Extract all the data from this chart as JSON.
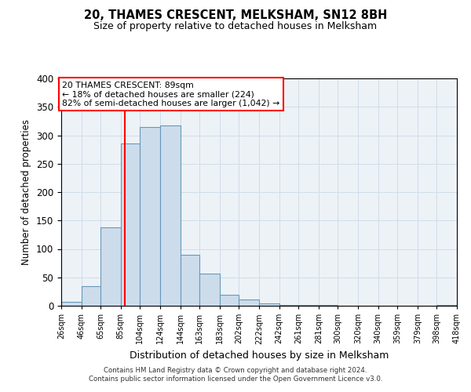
{
  "title": "20, THAMES CRESCENT, MELKSHAM, SN12 8BH",
  "subtitle": "Size of property relative to detached houses in Melksham",
  "xlabel": "Distribution of detached houses by size in Melksham",
  "ylabel": "Number of detached properties",
  "bin_edges": [
    26,
    46,
    65,
    85,
    104,
    124,
    144,
    163,
    183,
    202,
    222,
    242,
    261,
    281,
    300,
    320,
    340,
    359,
    379,
    398,
    418
  ],
  "bar_heights": [
    7,
    35,
    138,
    285,
    315,
    317,
    90,
    57,
    20,
    11,
    4,
    1,
    1,
    1,
    0,
    0,
    0,
    0,
    0,
    2
  ],
  "bar_color": "#cddceb",
  "bar_edge_color": "#6699bb",
  "grid_color": "#d0dde8",
  "bg_color": "#edf2f7",
  "property_line_x": 89,
  "property_line_color": "red",
  "annotation_title": "20 THAMES CRESCENT: 89sqm",
  "annotation_line1": "← 18% of detached houses are smaller (224)",
  "annotation_line2": "82% of semi-detached houses are larger (1,042) →",
  "annotation_box_color": "white",
  "annotation_box_edge_color": "red",
  "ylim": [
    0,
    400
  ],
  "tick_labels": [
    "26sqm",
    "46sqm",
    "65sqm",
    "85sqm",
    "104sqm",
    "124sqm",
    "144sqm",
    "163sqm",
    "183sqm",
    "202sqm",
    "222sqm",
    "242sqm",
    "261sqm",
    "281sqm",
    "300sqm",
    "320sqm",
    "340sqm",
    "359sqm",
    "379sqm",
    "398sqm",
    "418sqm"
  ],
  "footer1": "Contains HM Land Registry data © Crown copyright and database right 2024.",
  "footer2": "Contains public sector information licensed under the Open Government Licence v3.0."
}
